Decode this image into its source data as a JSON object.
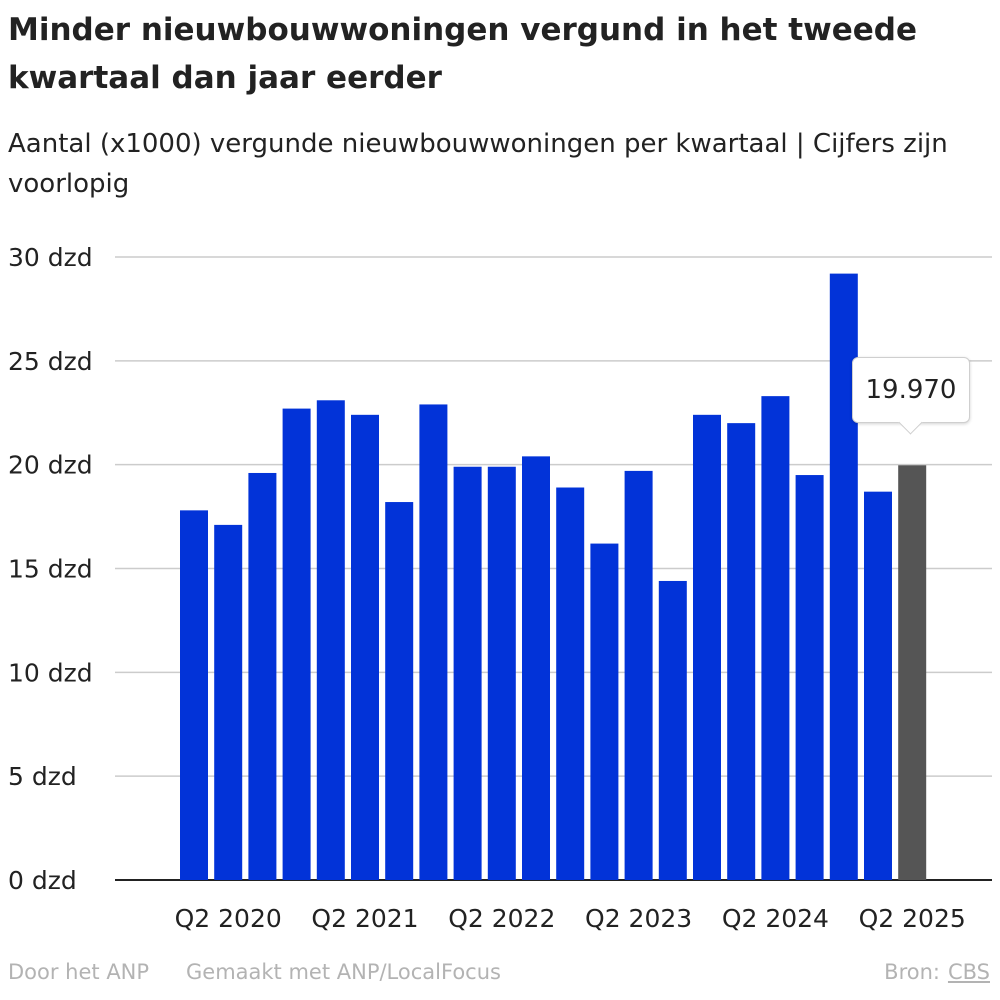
{
  "title": "Minder nieuwbouwwoningen vergund in het tweede kwartaal dan jaar eerder",
  "subtitle": "Aantal (x1000) vergunde nieuwbouwwoningen per kwartaal | Cijfers zijn voorlopig",
  "tooltip": {
    "value_label": "19.970"
  },
  "footer": {
    "credit": "Door het ANP",
    "made_with": "Gemaakt met ANP/LocalFocus",
    "source_label": "Bron:",
    "source_name": "CBS"
  },
  "colors": {
    "bar": "#0233d8",
    "highlight": "#555555",
    "grid": "#cccccc",
    "axis": "#222222"
  },
  "chart_data": {
    "type": "bar",
    "categories": [
      "Q1 2020",
      "Q2 2020",
      "Q3 2020",
      "Q4 2020",
      "Q1 2021",
      "Q2 2021",
      "Q3 2021",
      "Q4 2021",
      "Q1 2022",
      "Q2 2022",
      "Q3 2022",
      "Q4 2022",
      "Q1 2023",
      "Q2 2023",
      "Q3 2023",
      "Q4 2023",
      "Q1 2024",
      "Q2 2024",
      "Q3 2024",
      "Q4 2024",
      "Q1 2025",
      "Q2 2025"
    ],
    "values": [
      17.8,
      17.1,
      19.6,
      22.7,
      23.1,
      22.4,
      18.2,
      22.9,
      19.9,
      19.9,
      20.4,
      18.9,
      16.2,
      19.7,
      14.4,
      22.4,
      22.0,
      23.3,
      19.5,
      29.2,
      18.7,
      19.97
    ],
    "highlight_index": 21,
    "x_tick_labels": [
      "Q2 2020",
      "Q2 2021",
      "Q2 2022",
      "Q2 2023",
      "Q2 2024",
      "Q2 2025"
    ],
    "x_tick_indices": [
      1,
      5,
      9,
      13,
      17,
      21
    ],
    "y_ticks": [
      0,
      5,
      10,
      15,
      20,
      25,
      30
    ],
    "y_tick_labels": [
      "0 dzd",
      "5 dzd",
      "10 dzd",
      "15 dzd",
      "20 dzd",
      "25 dzd",
      "30 dzd"
    ],
    "ylim": [
      0,
      30
    ],
    "grid": true,
    "legend": "none"
  }
}
